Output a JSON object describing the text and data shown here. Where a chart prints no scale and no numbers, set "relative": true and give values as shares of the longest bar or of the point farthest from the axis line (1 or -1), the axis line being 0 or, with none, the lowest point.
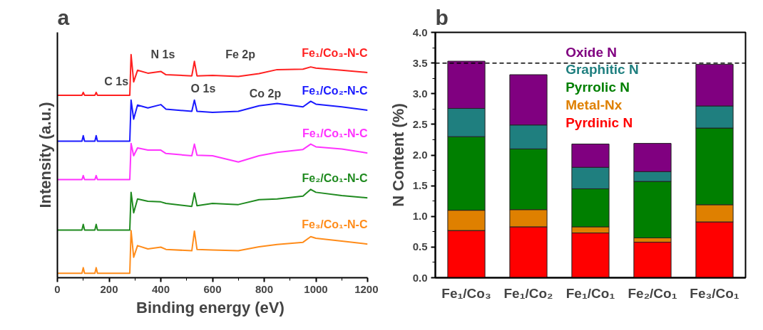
{
  "chart_data": [
    {
      "type": "line",
      "title": "a",
      "xlabel": "Binding energy  (eV)",
      "ylabel": "Intensity (a.u.)",
      "relative": true,
      "tick_labels": "x",
      "xlim": [
        0,
        1200
      ],
      "xticks": [
        0,
        200,
        400,
        600,
        800,
        1000,
        1200
      ],
      "x": [
        0,
        95,
        100,
        105,
        145,
        150,
        155,
        280,
        285,
        295,
        310,
        350,
        400,
        420,
        520,
        530,
        540,
        600,
        700,
        780,
        850,
        950,
        980,
        1000,
        1100,
        1200
      ],
      "series": [
        {
          "name": "Fe₁/Co₃-N-C",
          "color": "#ff2020",
          "values": [
            0.818,
            0.818,
            0.831,
            0.818,
            0.818,
            0.831,
            0.818,
            0.818,
            1.0,
            0.878,
            0.93,
            0.917,
            0.925,
            0.91,
            0.905,
            0.97,
            0.905,
            0.907,
            0.902,
            0.915,
            0.933,
            0.935,
            0.945,
            0.94,
            0.93,
            0.92
          ]
        },
        {
          "name": "Fe₁/Co₂-N-C",
          "color": "#1a1aff",
          "values": [
            0.612,
            0.612,
            0.637,
            0.612,
            0.612,
            0.637,
            0.612,
            0.612,
            0.796,
            0.711,
            0.774,
            0.761,
            0.776,
            0.756,
            0.746,
            0.796,
            0.746,
            0.741,
            0.746,
            0.771,
            0.781,
            0.766,
            0.791,
            0.778,
            0.766,
            0.751
          ]
        },
        {
          "name": "Fe₁/Co₁-N-C",
          "color": "#ff33ff",
          "values": [
            0.44,
            0.44,
            0.458,
            0.44,
            0.44,
            0.458,
            0.44,
            0.44,
            0.602,
            0.547,
            0.582,
            0.572,
            0.572,
            0.557,
            0.547,
            0.599,
            0.549,
            0.547,
            0.519,
            0.547,
            0.562,
            0.575,
            0.599,
            0.587,
            0.577,
            0.559
          ]
        },
        {
          "name": "Fe₂/Co₁-N-C",
          "color": "#1f8a1f",
          "values": [
            0.214,
            0.214,
            0.239,
            0.214,
            0.214,
            0.239,
            0.214,
            0.214,
            0.383,
            0.291,
            0.353,
            0.343,
            0.34,
            0.333,
            0.32,
            0.38,
            0.323,
            0.333,
            0.328,
            0.35,
            0.353,
            0.366,
            0.396,
            0.383,
            0.368,
            0.358
          ]
        },
        {
          "name": "Fe₃/Co₁-N-C",
          "color": "#ff8c1a",
          "values": [
            0.02,
            0.02,
            0.045,
            0.02,
            0.02,
            0.045,
            0.02,
            0.02,
            0.211,
            0.092,
            0.144,
            0.129,
            0.137,
            0.127,
            0.121,
            0.209,
            0.127,
            0.124,
            0.121,
            0.139,
            0.149,
            0.159,
            0.184,
            0.177,
            0.164,
            0.151
          ]
        }
      ],
      "annotations": [
        "C 1s",
        "N 1s",
        "O 1s",
        "Fe 2p",
        "Co 2p"
      ]
    },
    {
      "type": "bar",
      "title": "b",
      "ylabel": "N Content (%)",
      "stacked": true,
      "legend": "top",
      "categories": [
        "Fe₁/Co₃",
        "Fe₁/Co₂",
        "Fe₁/Co₁",
        "Fe₂/Co₁",
        "Fe₃/Co₁"
      ],
      "ylim": [
        0,
        4
      ],
      "yticks": [
        {
          "value": 0,
          "label": "0.0"
        },
        0.5,
        {
          "value": 1,
          "label": "1.0"
        },
        1.5,
        {
          "value": 2,
          "label": "2.0"
        },
        2.5,
        {
          "value": 3,
          "label": "3.0"
        },
        3.5,
        {
          "value": 4,
          "label": "4.0"
        }
      ],
      "series": [
        {
          "name": "Pyrdinic N",
          "color": "#ff0000",
          "values": [
            0.77,
            0.83,
            0.73,
            0.58,
            0.91
          ]
        },
        {
          "name": "Metal-Nx",
          "color": "#df8000",
          "values": [
            0.33,
            0.28,
            0.1,
            0.07,
            0.28
          ]
        },
        {
          "name": "Pyrrolic N",
          "color": "#007f00",
          "values": [
            1.2,
            0.99,
            0.62,
            0.92,
            1.25
          ]
        },
        {
          "name": "Graphitic N",
          "color": "#1f7f7f",
          "values": [
            0.46,
            0.39,
            0.35,
            0.16,
            0.36
          ]
        },
        {
          "name": "Oxide N",
          "color": "#800080",
          "values": [
            0.77,
            0.82,
            0.38,
            0.46,
            0.68
          ]
        }
      ],
      "ref_lines": [
        {
          "axis": "y",
          "value": 3.5,
          "label": null,
          "color": "#000000",
          "line_style": "dashed"
        }
      ]
    }
  ]
}
